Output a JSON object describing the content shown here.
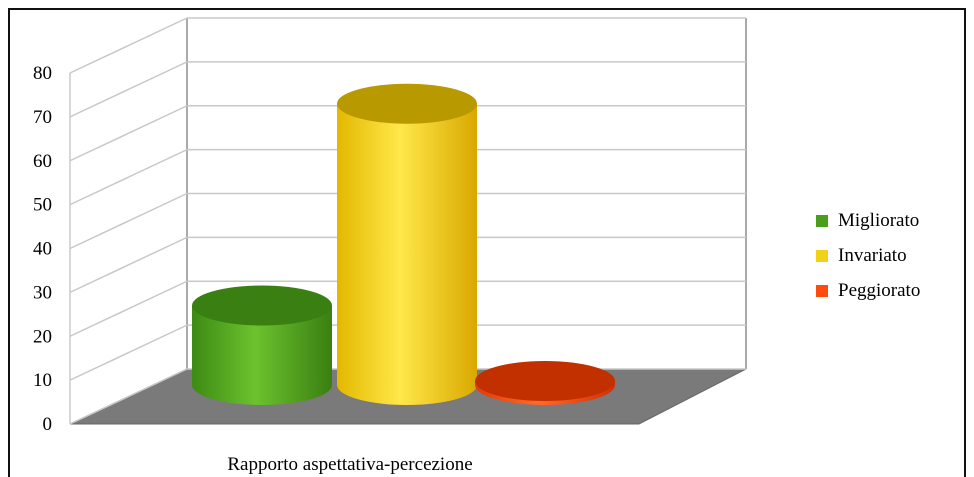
{
  "chart_data": {
    "type": "bar",
    "style": "3d-cylinder",
    "categories": [
      "Rapporto aspettativa-percezione"
    ],
    "series": [
      {
        "name": "Migliorato",
        "values": [
          27
        ],
        "color": "#4a9e1c"
      },
      {
        "name": "Invariato",
        "values": [
          73
        ],
        "color": "#f2d11a"
      },
      {
        "name": "Peggiorato",
        "values": [
          6
        ],
        "color": "#ff4a10"
      }
    ],
    "ylim": [
      0,
      80
    ],
    "yticks": [
      "0",
      "10",
      "20",
      "30",
      "40",
      "50",
      "60",
      "70",
      "80"
    ],
    "grid": true,
    "legend": "right",
    "title": "",
    "xlabel": "",
    "ylabel": ""
  }
}
